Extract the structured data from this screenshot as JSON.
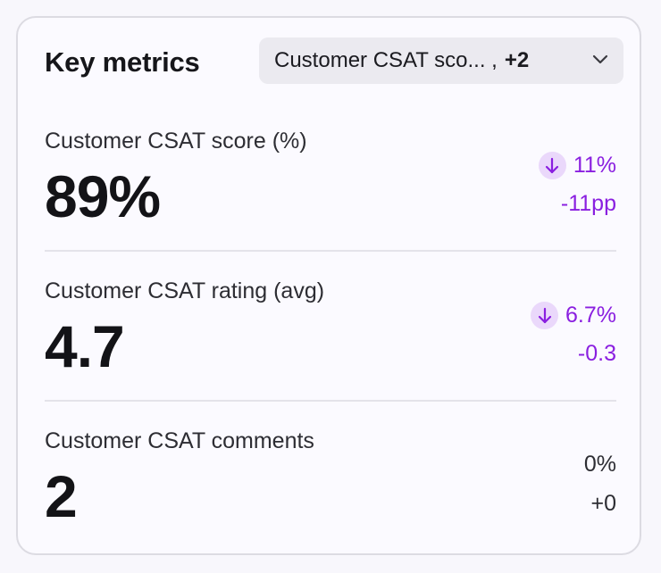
{
  "card": {
    "title": "Key metrics",
    "filter": {
      "label": "Customer CSAT sco... ,",
      "extra": "+2",
      "icon": "chevron-down-icon"
    }
  },
  "metrics": [
    {
      "label": "Customer CSAT score (%)",
      "value": "89%",
      "delta_percent": "11%",
      "delta_abs": "-11pp",
      "trend": "down",
      "trend_icon": "arrow-down-icon",
      "trend_color": "#8a1fe0"
    },
    {
      "label": "Customer CSAT rating (avg)",
      "value": "4.7",
      "delta_percent": "6.7%",
      "delta_abs": "-0.3",
      "trend": "down",
      "trend_icon": "arrow-down-icon",
      "trend_color": "#8a1fe0"
    },
    {
      "label": "Customer CSAT comments",
      "value": "2",
      "delta_percent": "0%",
      "delta_abs": "+0",
      "trend": "neutral"
    }
  ]
}
